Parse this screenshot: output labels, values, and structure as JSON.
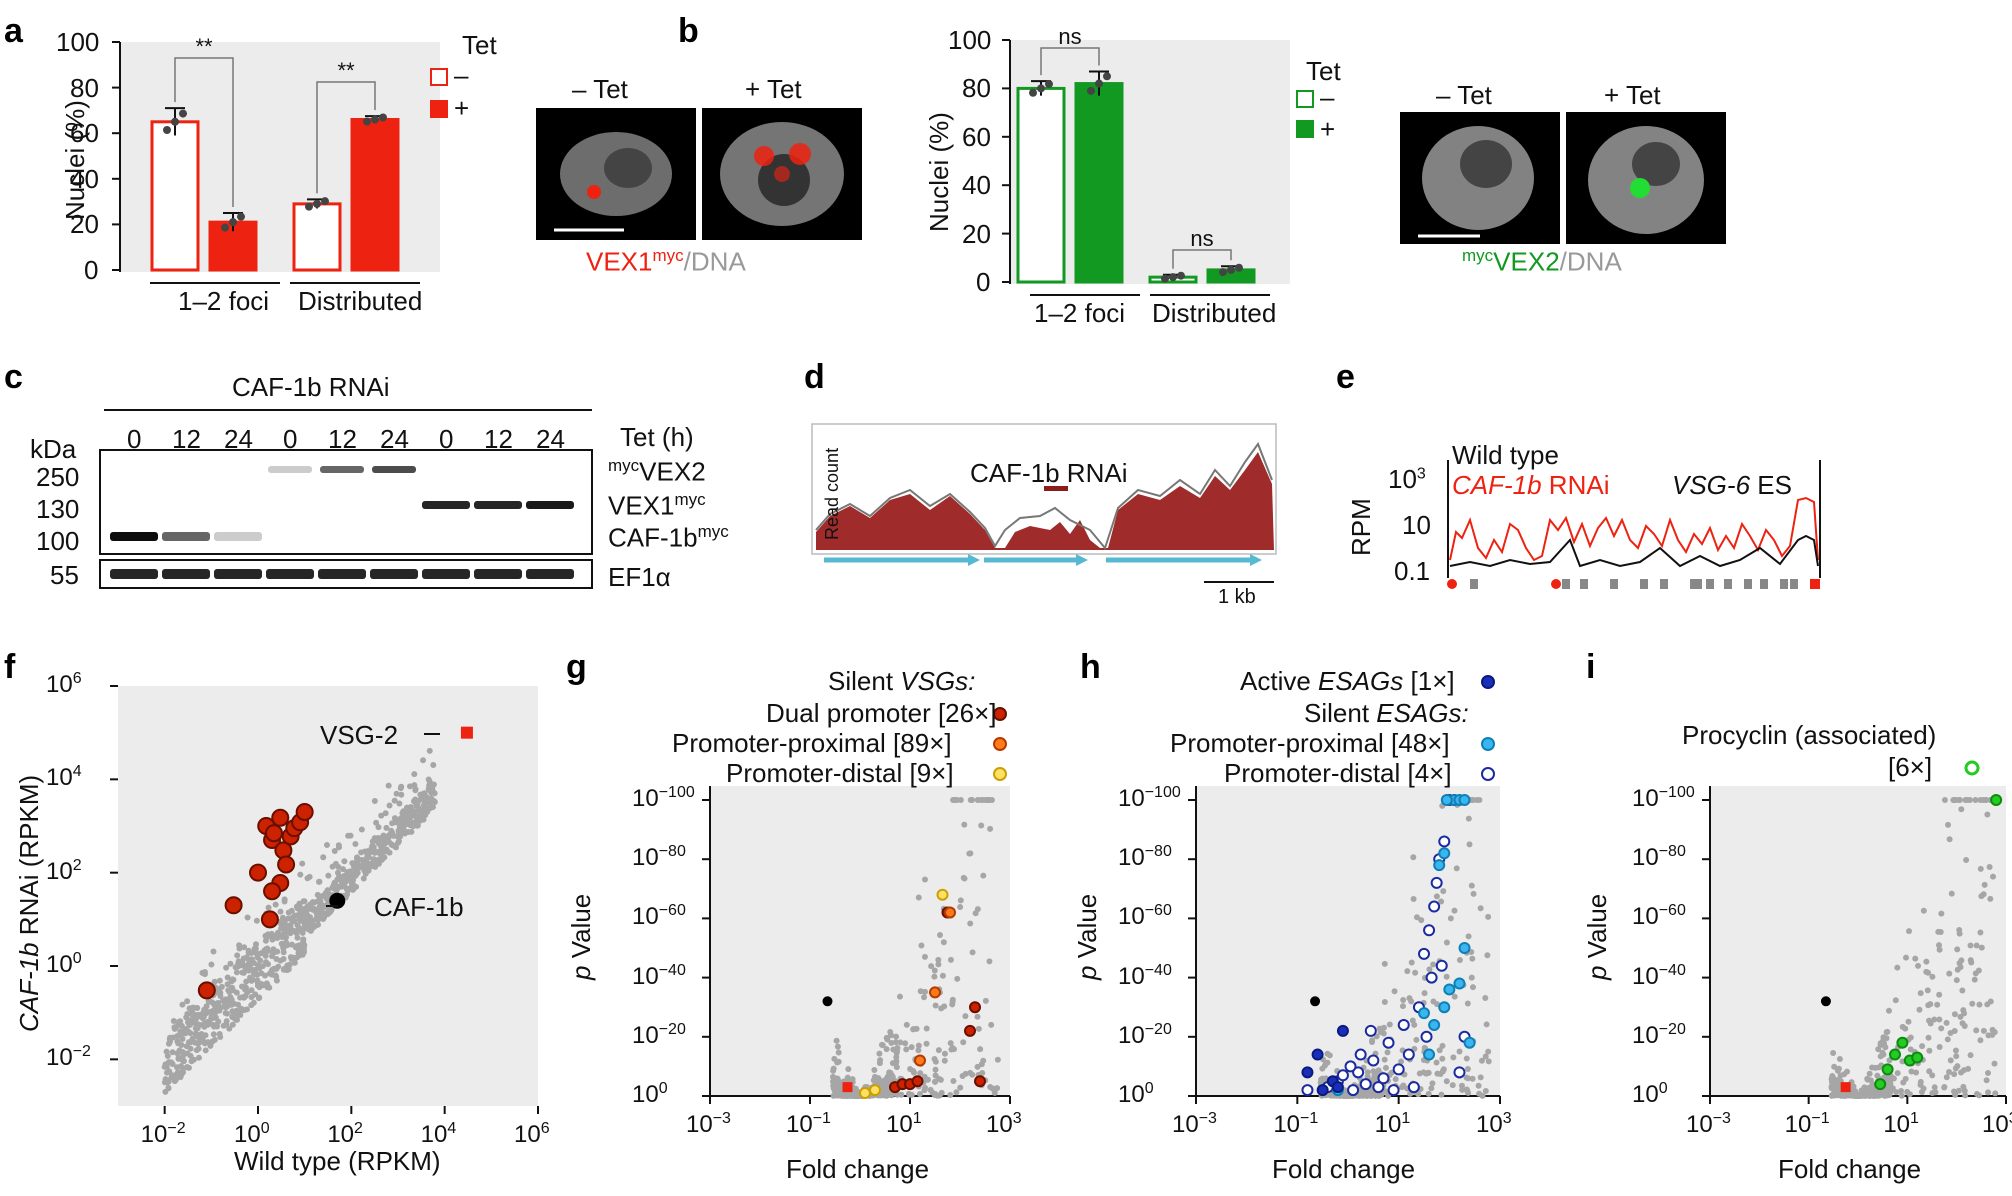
{
  "panels": {
    "a": "a",
    "b": "b",
    "c": "c",
    "d": "d",
    "e": "e",
    "f": "f",
    "g": "g",
    "h": "h",
    "i": "i"
  },
  "colors": {
    "red": "#ee2211",
    "green": "#119922",
    "gray": "#a6a6a6",
    "panel_bg": "#ececec",
    "dark_red": "#a02b2b",
    "cyan_arrow": "#57b9d1",
    "dual_promoter": "#cc2200",
    "promoter_proximal": "#ff7a1a",
    "promoter_distal": "#ffe066",
    "active_esag": "#1a2fb8",
    "silent_proximal": "#39b6f0",
    "silent_distal": "#1a2aa0",
    "procyclin": "#22cc22"
  },
  "chart_data": [
    {
      "id": "a",
      "type": "bar",
      "ylabel": "Nuclei (%)",
      "ylim": [
        0,
        100
      ],
      "yticks": [
        "0",
        "20",
        "40",
        "60",
        "80",
        "100"
      ],
      "categories": [
        "1–2 foci",
        "Distributed"
      ],
      "legend_title": "Tet",
      "series": [
        {
          "name": "–",
          "values": [
            65,
            29
          ],
          "errors": [
            6,
            2
          ]
        },
        {
          "name": "+",
          "values": [
            21,
            66
          ],
          "errors": [
            4,
            1.5
          ]
        }
      ],
      "significance": [
        "**",
        "**"
      ],
      "image_labels": [
        "– Tet",
        "+ Tet"
      ],
      "caption_main": "VEX1",
      "caption_sup": "myc",
      "caption_rest": "/DNA"
    },
    {
      "id": "b",
      "type": "bar",
      "ylabel": "Nuclei (%)",
      "ylim": [
        0,
        100
      ],
      "yticks": [
        "0",
        "20",
        "40",
        "60",
        "80",
        "100"
      ],
      "categories": [
        "1–2 foci",
        "Distributed"
      ],
      "legend_title": "Tet",
      "series": [
        {
          "name": "–",
          "values": [
            80,
            2
          ],
          "errors": [
            3,
            1
          ]
        },
        {
          "name": "+",
          "values": [
            82,
            5
          ],
          "errors": [
            5,
            1.5
          ]
        }
      ],
      "significance": [
        "ns",
        "ns"
      ],
      "image_labels": [
        "– Tet",
        "+ Tet"
      ],
      "caption_sup": "myc",
      "caption_main": "VEX2",
      "caption_rest": "/DNA"
    },
    {
      "id": "c",
      "type": "table",
      "title": "CAF-1b RNAi",
      "time_label": "Tet (h)",
      "lanes": [
        "0",
        "12",
        "24",
        "0",
        "12",
        "24",
        "0",
        "12",
        "24"
      ],
      "kda_label": "kDa",
      "markers": [
        "250",
        "130",
        "100",
        "55"
      ],
      "bands": [
        {
          "pre": "myc",
          "name": "VEX2",
          "post": ""
        },
        {
          "pre": "",
          "name": "VEX1",
          "post": "myc"
        },
        {
          "pre": "",
          "name": "CAF-1b",
          "post": "myc"
        },
        {
          "pre": "",
          "name": "EF1α",
          "post": ""
        }
      ]
    },
    {
      "id": "d",
      "type": "area",
      "ylabel": "Read count",
      "label": "CAF-1b RNAi",
      "scale": "1 kb"
    },
    {
      "id": "e",
      "type": "line",
      "ylabel": "RPM",
      "yticks": [
        "0.1",
        "10",
        "10"
      ],
      "ytick_top_exp": "3",
      "series": [
        {
          "name": "Wild type"
        },
        {
          "name_italic": "CAF-1b",
          "name_rest": " RNAi"
        }
      ],
      "annotation_italic": "VSG-6",
      "annotation_rest": " ES"
    },
    {
      "id": "f",
      "type": "scatter",
      "xlabel": "Wild type (RPKM)",
      "ylabel_italic": "CAF-1b",
      "ylabel_rest": " RNAi (RPKM)",
      "xticks_exp": [
        "−2",
        "0",
        "2",
        "4",
        "6"
      ],
      "yticks_exp": [
        "−2",
        "0",
        "2",
        "4",
        "6"
      ],
      "tick_base": "10",
      "annotations": [
        "VSG-2",
        "CAF-1b"
      ],
      "vsg_points": [
        [
          0.08,
          0.3
        ],
        [
          0.3,
          20
        ],
        [
          1,
          100
        ],
        [
          1.5,
          1000
        ],
        [
          2,
          500
        ],
        [
          2.2,
          700
        ],
        [
          3,
          1500
        ],
        [
          3.5,
          300
        ],
        [
          4,
          150
        ],
        [
          5,
          600
        ],
        [
          6,
          900
        ],
        [
          8,
          1200
        ],
        [
          10,
          2000
        ],
        [
          3,
          60
        ],
        [
          2,
          40
        ],
        [
          1.8,
          10
        ]
      ],
      "highlights": {
        "VSG-2": [
          30000,
          100000
        ],
        "CAF-1b": [
          50,
          25
        ]
      }
    },
    {
      "id": "g",
      "type": "scatter",
      "xlabel": "Fold change",
      "ylabel_italic": "p",
      "ylabel_rest": " Value",
      "xticks_exp": [
        "−3",
        "−1",
        "1",
        "3"
      ],
      "yticks_exp": [
        "0",
        "−20",
        "−40",
        "−60",
        "−80",
        "−100"
      ],
      "tick_base": "10",
      "legend_title_plain": "Silent ",
      "legend_title_italic": "VSGs:",
      "legend": [
        "Dual promoter [26×]",
        "Promoter-proximal [89×]",
        "Promoter-distal [9×]"
      ]
    },
    {
      "id": "h",
      "type": "scatter",
      "xlabel": "Fold change",
      "ylabel_italic": "p",
      "ylabel_rest": " Value",
      "xticks_exp": [
        "−3",
        "−1",
        "1",
        "3"
      ],
      "yticks_exp": [
        "0",
        "−20",
        "−40",
        "−60",
        "−80",
        "−100"
      ],
      "tick_base": "10",
      "legend_active_plain": "Active ",
      "legend_active_italic": "ESAGs",
      "legend_active_rest": " [1×]",
      "legend_silent_plain": "Silent ",
      "legend_silent_italic": "ESAGs:",
      "legend": [
        "Promoter-proximal [48×]",
        "Promoter-distal [4×]"
      ]
    },
    {
      "id": "i",
      "type": "scatter",
      "xlabel": "Fold change",
      "ylabel_italic": "p",
      "ylabel_rest": " Value",
      "xticks_exp": [
        "−3",
        "−1",
        "1",
        "3"
      ],
      "yticks_exp": [
        "0",
        "−20",
        "−40",
        "−60",
        "−80",
        "−100"
      ],
      "tick_base": "10",
      "legend_title": "Procyclin (associated)",
      "legend_count": "[6×]"
    }
  ]
}
